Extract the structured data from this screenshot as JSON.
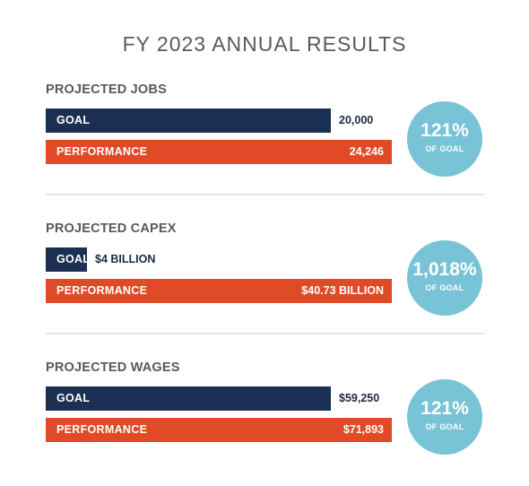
{
  "title": "FY 2023 ANNUAL RESULTS",
  "colors": {
    "goal": "#1b2f52",
    "performance": "#e04a26",
    "circle": "#79c3d6",
    "text": "#555a5e"
  },
  "chart_data": [
    {
      "type": "bar",
      "title": "PROJECTED JOBS",
      "categories": [
        "GOAL",
        "PERFORMANCE"
      ],
      "values": [
        20000,
        24246
      ],
      "value_labels": [
        "20,000",
        "24,246"
      ],
      "percent_of_goal": "121%",
      "percent_caption": "OF GOAL"
    },
    {
      "type": "bar",
      "title": "PROJECTED CAPEX",
      "categories": [
        "GOAL",
        "PERFORMANCE"
      ],
      "values": [
        4,
        40.73
      ],
      "value_labels": [
        "$4 BILLION",
        "$40.73 BILLION"
      ],
      "percent_of_goal": "1,018%",
      "percent_caption": "OF GOAL"
    },
    {
      "type": "bar",
      "title": "PROJECTED WAGES",
      "categories": [
        "GOAL",
        "PERFORMANCE"
      ],
      "values": [
        59250,
        71893
      ],
      "value_labels": [
        "$59,250",
        "$71,893"
      ],
      "percent_of_goal": "121%",
      "percent_caption": "OF GOAL"
    }
  ]
}
